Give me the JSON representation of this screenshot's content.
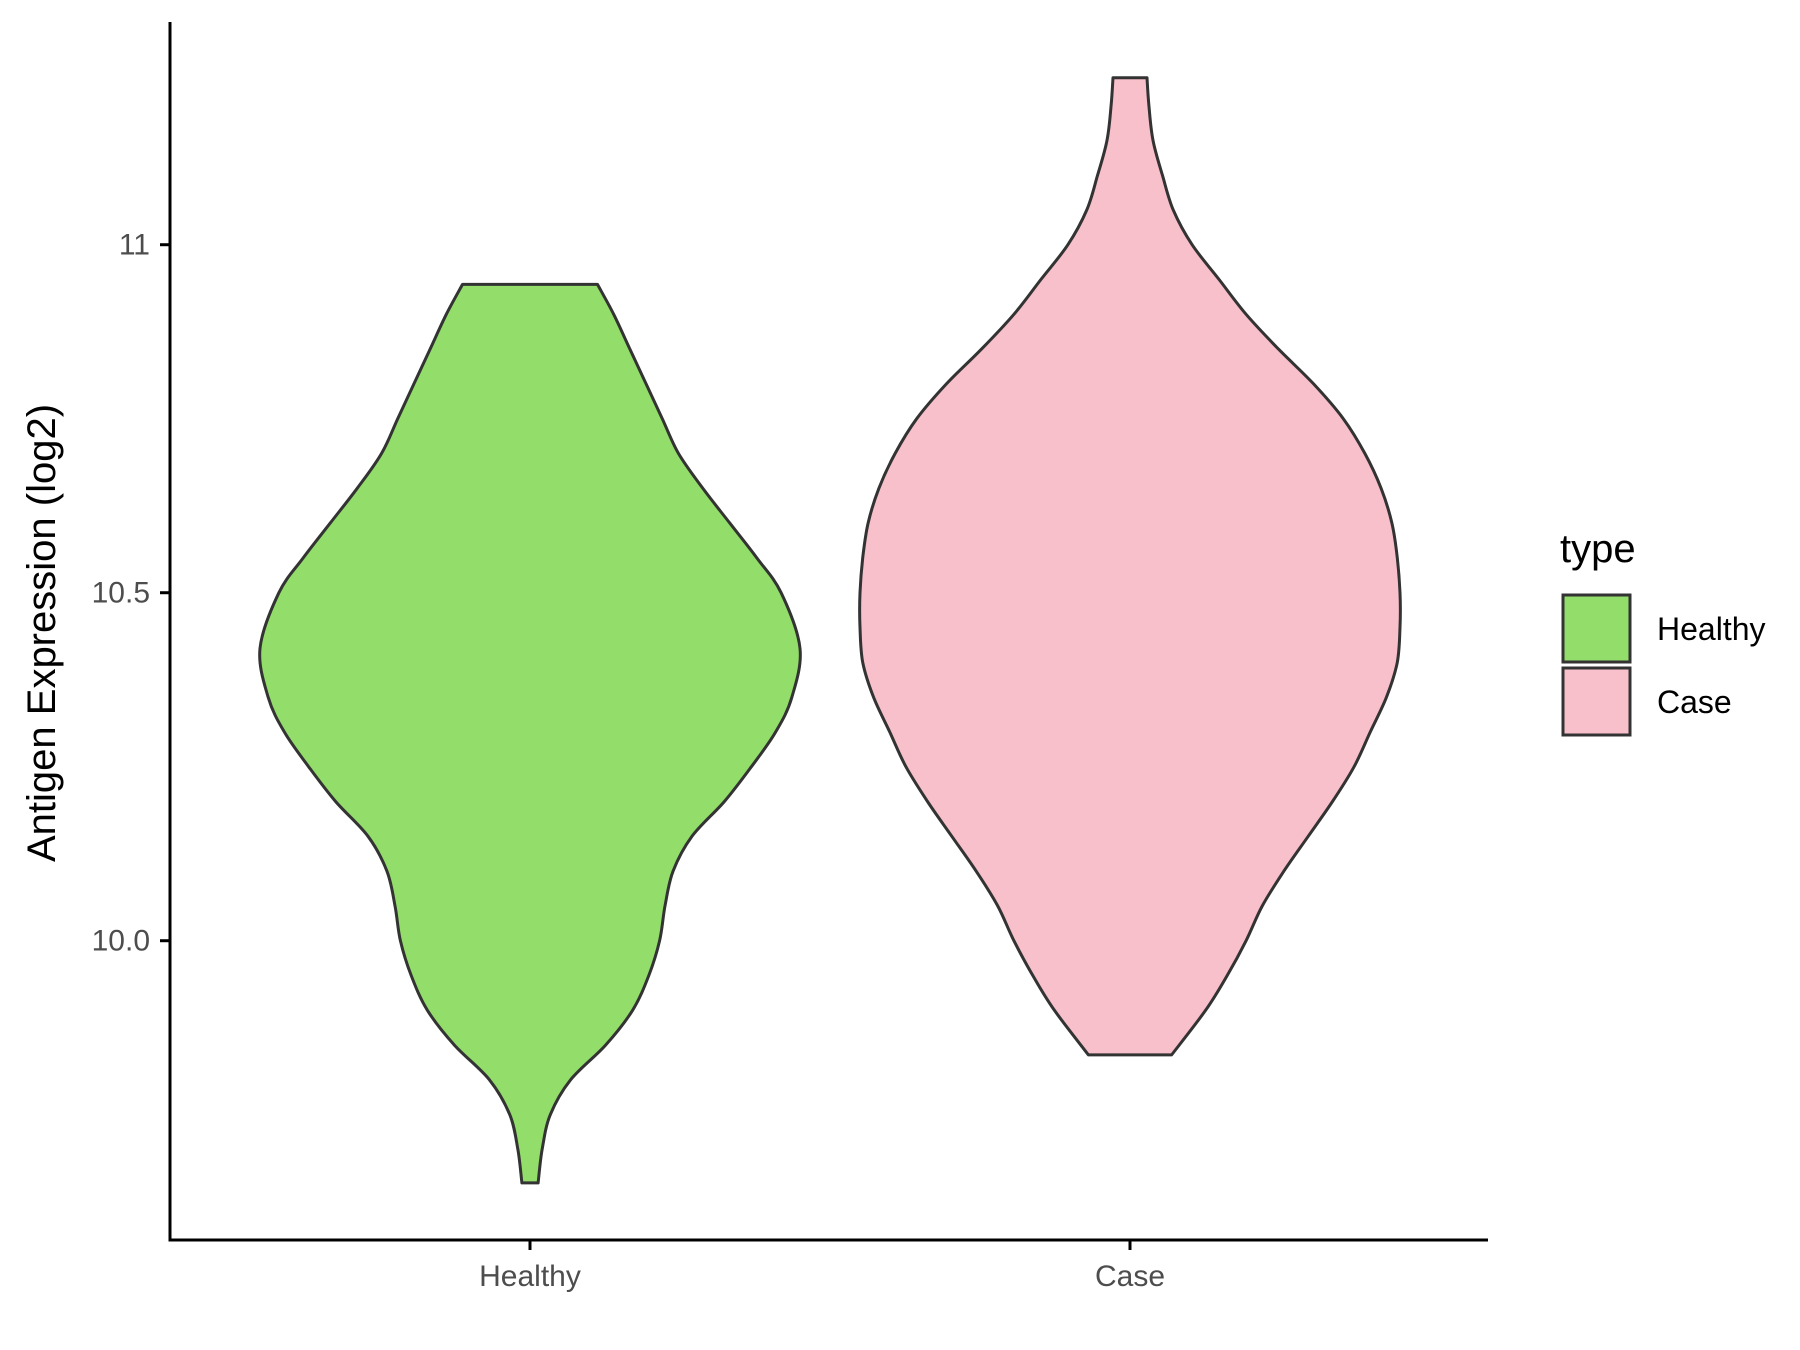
{
  "chart_data": {
    "type": "violin",
    "title": "",
    "xlabel": "",
    "ylabel": "Antigen Expression (log2)",
    "categories": [
      "Healthy",
      "Case"
    ],
    "ylim": [
      9.57,
      11.32
    ],
    "yticks": [
      10.0,
      10.5,
      11.0
    ],
    "ytick_labels": [
      "10.0",
      "10.5",
      11.0
    ],
    "grid": false,
    "legend": {
      "title": "type",
      "position": "right",
      "entries": [
        {
          "label": "Healthy",
          "color": "#93DD6B"
        },
        {
          "label": "Case",
          "color": "#F7C0CB"
        }
      ]
    },
    "outline_color": "#333333",
    "series": [
      {
        "name": "Healthy",
        "color": "#93DD6B",
        "min": 9.652,
        "max": 10.943,
        "density_profile": [
          [
            9.652,
            0.03
          ],
          [
            9.7,
            0.045
          ],
          [
            9.75,
            0.075
          ],
          [
            9.8,
            0.15
          ],
          [
            9.85,
            0.28
          ],
          [
            9.9,
            0.38
          ],
          [
            9.95,
            0.44
          ],
          [
            10.0,
            0.48
          ],
          [
            10.05,
            0.5
          ],
          [
            10.1,
            0.53
          ],
          [
            10.15,
            0.6
          ],
          [
            10.2,
            0.72
          ],
          [
            10.25,
            0.82
          ],
          [
            10.3,
            0.91
          ],
          [
            10.35,
            0.97
          ],
          [
            10.42,
            1.0
          ],
          [
            10.5,
            0.93
          ],
          [
            10.55,
            0.84
          ],
          [
            10.6,
            0.74
          ],
          [
            10.65,
            0.64
          ],
          [
            10.7,
            0.55
          ],
          [
            10.75,
            0.49
          ],
          [
            10.8,
            0.43
          ],
          [
            10.85,
            0.37
          ],
          [
            10.9,
            0.31
          ],
          [
            10.943,
            0.25
          ]
        ]
      },
      {
        "name": "Case",
        "color": "#F7C0CB",
        "min": 9.836,
        "max": 11.24,
        "density_profile": [
          [
            9.836,
            0.154
          ],
          [
            9.9,
            0.28
          ],
          [
            9.95,
            0.36
          ],
          [
            10.0,
            0.43
          ],
          [
            10.05,
            0.49
          ],
          [
            10.1,
            0.57
          ],
          [
            10.15,
            0.66
          ],
          [
            10.2,
            0.75
          ],
          [
            10.25,
            0.83
          ],
          [
            10.3,
            0.89
          ],
          [
            10.35,
            0.95
          ],
          [
            10.4,
            0.99
          ],
          [
            10.45,
            1.0
          ],
          [
            10.5,
            1.0
          ],
          [
            10.55,
            0.99
          ],
          [
            10.6,
            0.97
          ],
          [
            10.65,
            0.93
          ],
          [
            10.7,
            0.87
          ],
          [
            10.75,
            0.79
          ],
          [
            10.8,
            0.68
          ],
          [
            10.85,
            0.55
          ],
          [
            10.9,
            0.43
          ],
          [
            10.95,
            0.33
          ],
          [
            11.0,
            0.23
          ],
          [
            11.05,
            0.16
          ],
          [
            11.1,
            0.12
          ],
          [
            11.15,
            0.085
          ],
          [
            11.2,
            0.07
          ],
          [
            11.24,
            0.063
          ]
        ]
      }
    ]
  }
}
